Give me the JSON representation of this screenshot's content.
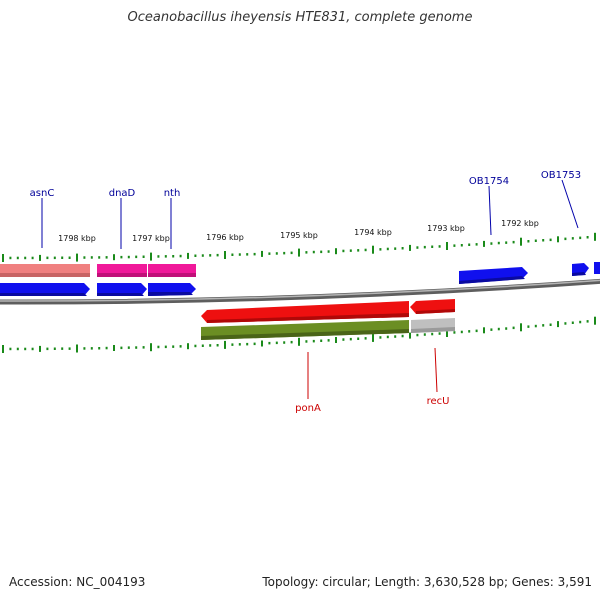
{
  "header": {
    "title": "Oceanobacillus iheyensis HTE831, complete genome"
  },
  "footer": {
    "accession": "Accession: NC_004193",
    "stats": "Topology: circular; Length: 3,630,528 bp; Genes: 3,591"
  },
  "scale": {
    "tick_labels": [
      "1798 kbp",
      "1797 kbp",
      "1796 kbp",
      "1795 kbp",
      "1794 kbp",
      "1793 kbp",
      "1792 kbp"
    ]
  },
  "genes": {
    "upper_labels": [
      "asnC",
      "dnaD",
      "nth",
      "OB1754",
      "OB1753"
    ],
    "lower_labels": [
      "ponA",
      "recU"
    ]
  },
  "colors": {
    "backbone": "#8a8a8a",
    "tick": "#1a8a1a",
    "cds_forward": "#1010ee",
    "cds_reverse": "#ee1010",
    "salmon_feature": "#f08080",
    "pink_feature": "#f0199a",
    "olive_feature": "#6b8e23",
    "gray_feature": "#bfbfbf",
    "upper_label": "#000099",
    "lower_label": "#cc0000"
  }
}
